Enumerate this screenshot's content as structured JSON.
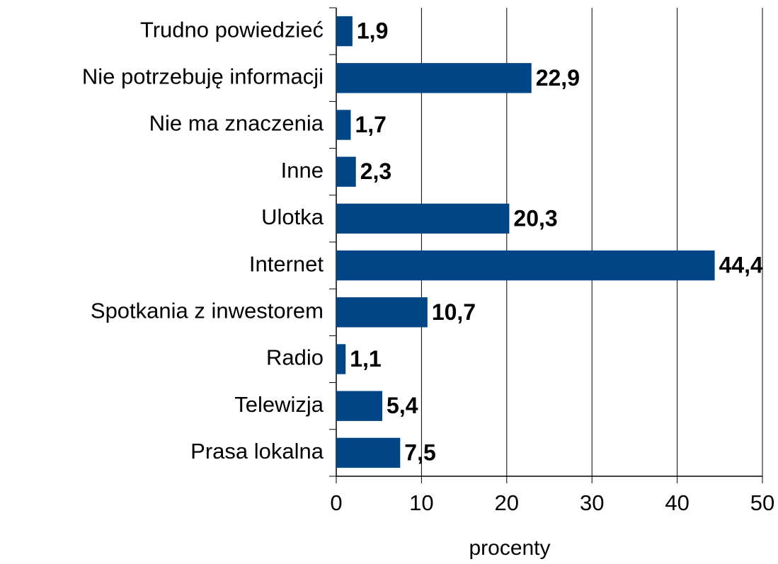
{
  "chart_data": {
    "type": "bar",
    "orientation": "horizontal",
    "x_label": "procenty",
    "categories": [
      "Trudno powiedzieć",
      "Nie potrzebuję informacji",
      "Nie ma znaczenia",
      "Inne",
      "Ulotka",
      "Internet",
      "Spotkania z inwestorem",
      "Radio",
      "Telewizja",
      "Prasa lokalna"
    ],
    "values": [
      1.9,
      22.9,
      1.7,
      2.3,
      20.3,
      44.4,
      10.7,
      1.1,
      5.4,
      7.5
    ],
    "value_labels": [
      "1,9",
      "22,9",
      "1,7",
      "2,3",
      "20,3",
      "44,4",
      "10,7",
      "1,1",
      "5,4",
      "7,5"
    ],
    "color": "#004586",
    "xlim": [
      0,
      50
    ],
    "xticks": [
      0,
      10,
      20,
      30,
      40,
      50
    ],
    "grid": true
  }
}
